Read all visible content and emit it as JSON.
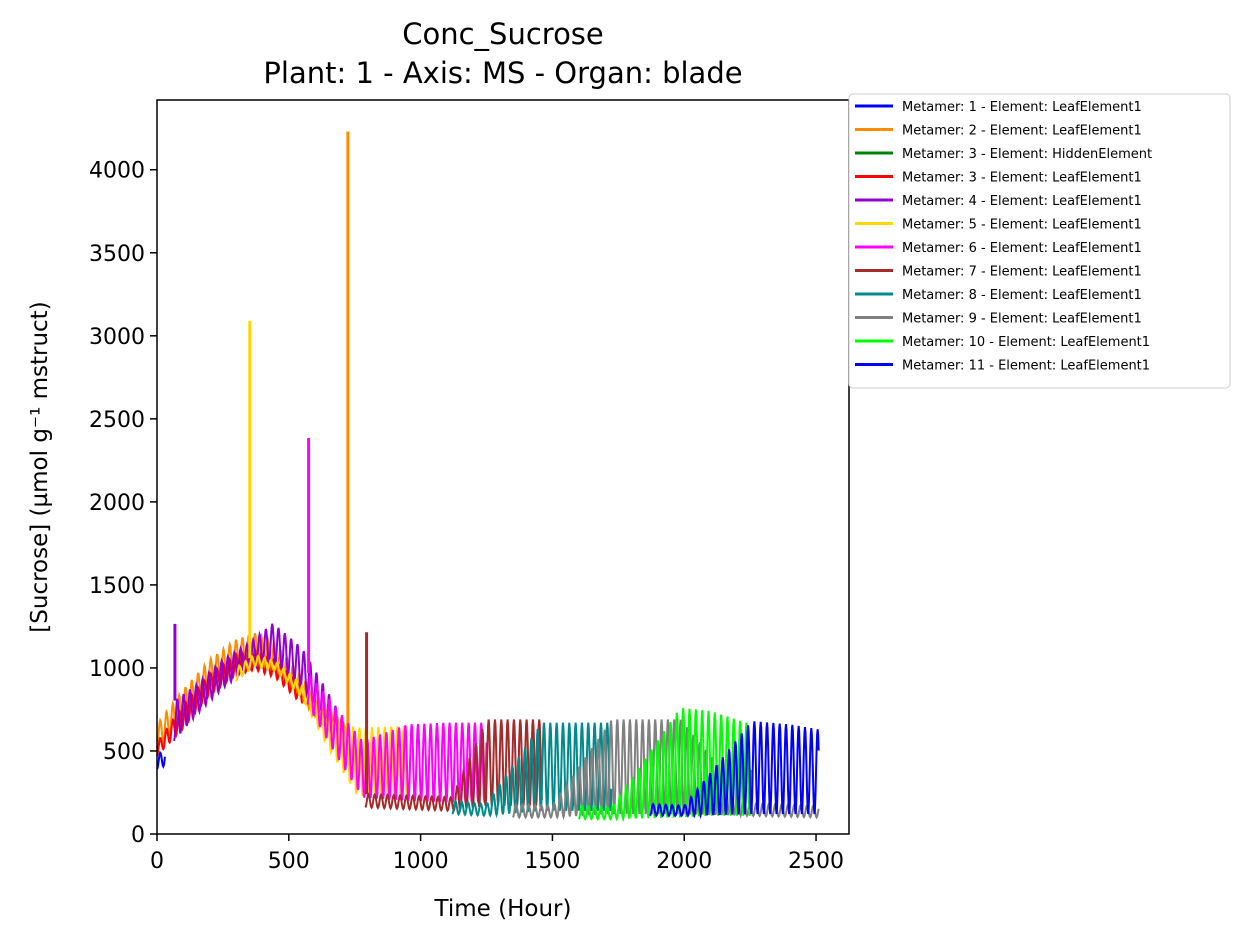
{
  "chart_data": {
    "type": "line",
    "title": "Conc_Sucrose",
    "subtitle": "Plant: 1 - Axis: MS - Organ: blade",
    "xlabel": "Time (Hour)",
    "ylabel": "[Sucrose] (µmol g⁻¹ mstruct)",
    "xlim": [
      0,
      2625
    ],
    "ylim": [
      0,
      4420
    ],
    "xticks": [
      0,
      500,
      1000,
      1500,
      2000,
      2500
    ],
    "yticks": [
      0,
      500,
      1000,
      1500,
      2000,
      2500,
      3000,
      3500,
      4000
    ],
    "grid": false,
    "legend_position": "outside-top-right",
    "period_hours": 24,
    "series": [
      {
        "name": "Metamer: 1 - Element: LeafElement1",
        "color": "#0000ff",
        "start": 0,
        "end": 30,
        "upper": [
          [
            0,
            470
          ],
          [
            30,
            520
          ]
        ],
        "lower": [
          [
            0,
            390
          ],
          [
            30,
            410
          ]
        ]
      },
      {
        "name": "Metamer: 2 - Element: LeafElement1",
        "color": "#ff8c00",
        "start": 0,
        "end": 730,
        "upper": [
          [
            0,
            660
          ],
          [
            100,
            870
          ],
          [
            200,
            1050
          ],
          [
            300,
            1170
          ],
          [
            370,
            1210
          ],
          [
            450,
            1150
          ],
          [
            550,
            950
          ],
          [
            650,
            760
          ],
          [
            730,
            630
          ]
        ],
        "lower": [
          [
            0,
            520
          ],
          [
            100,
            660
          ],
          [
            200,
            860
          ],
          [
            300,
            980
          ],
          [
            370,
            1020
          ],
          [
            450,
            980
          ],
          [
            550,
            800
          ],
          [
            650,
            620
          ],
          [
            730,
            520
          ]
        ],
        "spikes": [
          [
            724,
            4230
          ]
        ]
      },
      {
        "name": "Metamer: 3 - Element: HiddenElement",
        "color": "#008000",
        "start": 0,
        "end": 0,
        "upper": [],
        "lower": []
      },
      {
        "name": "Metamer: 3 - Element: LeafElement1",
        "color": "#ff0000",
        "start": 0,
        "end": 550,
        "upper": [
          [
            0,
            550
          ],
          [
            100,
            780
          ],
          [
            200,
            960
          ],
          [
            300,
            1080
          ],
          [
            370,
            1110
          ],
          [
            450,
            1050
          ],
          [
            550,
            890
          ]
        ],
        "lower": [
          [
            0,
            470
          ],
          [
            100,
            640
          ],
          [
            200,
            840
          ],
          [
            300,
            960
          ],
          [
            370,
            990
          ],
          [
            450,
            940
          ],
          [
            550,
            780
          ]
        ]
      },
      {
        "name": "Metamer: 4 - Element: LeafElement1",
        "color": "#9400d3",
        "start": 65,
        "end": 760,
        "upper": [
          [
            65,
            800
          ],
          [
            150,
            900
          ],
          [
            250,
            1050
          ],
          [
            350,
            1150
          ],
          [
            440,
            1270
          ],
          [
            550,
            1120
          ],
          [
            650,
            850
          ],
          [
            760,
            530
          ]
        ],
        "lower": [
          [
            65,
            560
          ],
          [
            150,
            720
          ],
          [
            250,
            880
          ],
          [
            350,
            1000
          ],
          [
            440,
            1040
          ],
          [
            550,
            880
          ],
          [
            650,
            560
          ],
          [
            760,
            320
          ]
        ],
        "spikes": [
          [
            68,
            1265
          ]
        ]
      },
      {
        "name": "Metamer: 5 - Element: LeafElement1",
        "color": "#ffd700",
        "start": 300,
        "end": 950,
        "upper": [
          [
            300,
            1000
          ],
          [
            370,
            1080
          ],
          [
            450,
            1040
          ],
          [
            550,
            900
          ],
          [
            650,
            690
          ],
          [
            760,
            640
          ],
          [
            950,
            650
          ]
        ],
        "lower": [
          [
            300,
            920
          ],
          [
            370,
            1010
          ],
          [
            450,
            980
          ],
          [
            550,
            820
          ],
          [
            650,
            520
          ],
          [
            760,
            230
          ],
          [
            950,
            220
          ]
        ],
        "spikes": [
          [
            352,
            3090
          ]
        ]
      },
      {
        "name": "Metamer: 6 - Element: LeafElement1",
        "color": "#ff00ff",
        "start": 570,
        "end": 1250,
        "upper": [
          [
            570,
            980
          ],
          [
            680,
            760
          ],
          [
            780,
            560
          ],
          [
            950,
            660
          ],
          [
            1100,
            670
          ],
          [
            1250,
            670
          ]
        ],
        "lower": [
          [
            570,
            780
          ],
          [
            680,
            470
          ],
          [
            780,
            220
          ],
          [
            950,
            200
          ],
          [
            1100,
            190
          ],
          [
            1250,
            190
          ]
        ],
        "spikes": [
          [
            575,
            2385
          ]
        ]
      },
      {
        "name": "Metamer: 7 - Element: LeafElement1",
        "color": "#a52a2a",
        "start": 790,
        "end": 1460,
        "upper": [
          [
            790,
            240
          ],
          [
            950,
            230
          ],
          [
            1120,
            220
          ],
          [
            1250,
            690
          ],
          [
            1460,
            690
          ]
        ],
        "lower": [
          [
            790,
            160
          ],
          [
            950,
            150
          ],
          [
            1120,
            140
          ],
          [
            1250,
            170
          ],
          [
            1460,
            170
          ]
        ],
        "spikes": [
          [
            795,
            1215
          ]
        ]
      },
      {
        "name": "Metamer: 8 - Element: LeafElement1",
        "color": "#008b8b",
        "start": 1120,
        "end": 1725,
        "upper": [
          [
            1120,
            200
          ],
          [
            1250,
            180
          ],
          [
            1460,
            670
          ],
          [
            1725,
            670
          ]
        ],
        "lower": [
          [
            1120,
            120
          ],
          [
            1250,
            110
          ],
          [
            1460,
            140
          ],
          [
            1725,
            140
          ]
        ]
      },
      {
        "name": "Metamer: 9 - Element: LeafElement1",
        "color": "#808080",
        "start": 1350,
        "end": 2510,
        "upper": [
          [
            1350,
            180
          ],
          [
            1500,
            170
          ],
          [
            1725,
            690
          ],
          [
            1985,
            690
          ],
          [
            2250,
            190
          ],
          [
            2510,
            170
          ]
        ],
        "lower": [
          [
            1350,
            100
          ],
          [
            1500,
            100
          ],
          [
            1725,
            120
          ],
          [
            1985,
            120
          ],
          [
            2250,
            110
          ],
          [
            2510,
            100
          ]
        ]
      },
      {
        "name": "Metamer: 10 - Element: LeafElement1",
        "color": "#00ff00",
        "start": 1600,
        "end": 2255,
        "upper": [
          [
            1600,
            170
          ],
          [
            1725,
            160
          ],
          [
            1985,
            760
          ],
          [
            2100,
            740
          ],
          [
            2255,
            660
          ]
        ],
        "lower": [
          [
            1600,
            90
          ],
          [
            1725,
            90
          ],
          [
            1985,
            100
          ],
          [
            2100,
            110
          ],
          [
            2255,
            110
          ]
        ]
      },
      {
        "name": "Metamer: 11 - Element: LeafElement1",
        "color": "#0000ff",
        "start": 1870,
        "end": 2510,
        "upper": [
          [
            1870,
            180
          ],
          [
            2000,
            170
          ],
          [
            2255,
            680
          ],
          [
            2400,
            660
          ],
          [
            2510,
            630
          ]
        ],
        "lower": [
          [
            1870,
            110
          ],
          [
            2000,
            110
          ],
          [
            2255,
            120
          ],
          [
            2400,
            120
          ],
          [
            2510,
            120
          ]
        ]
      }
    ]
  }
}
